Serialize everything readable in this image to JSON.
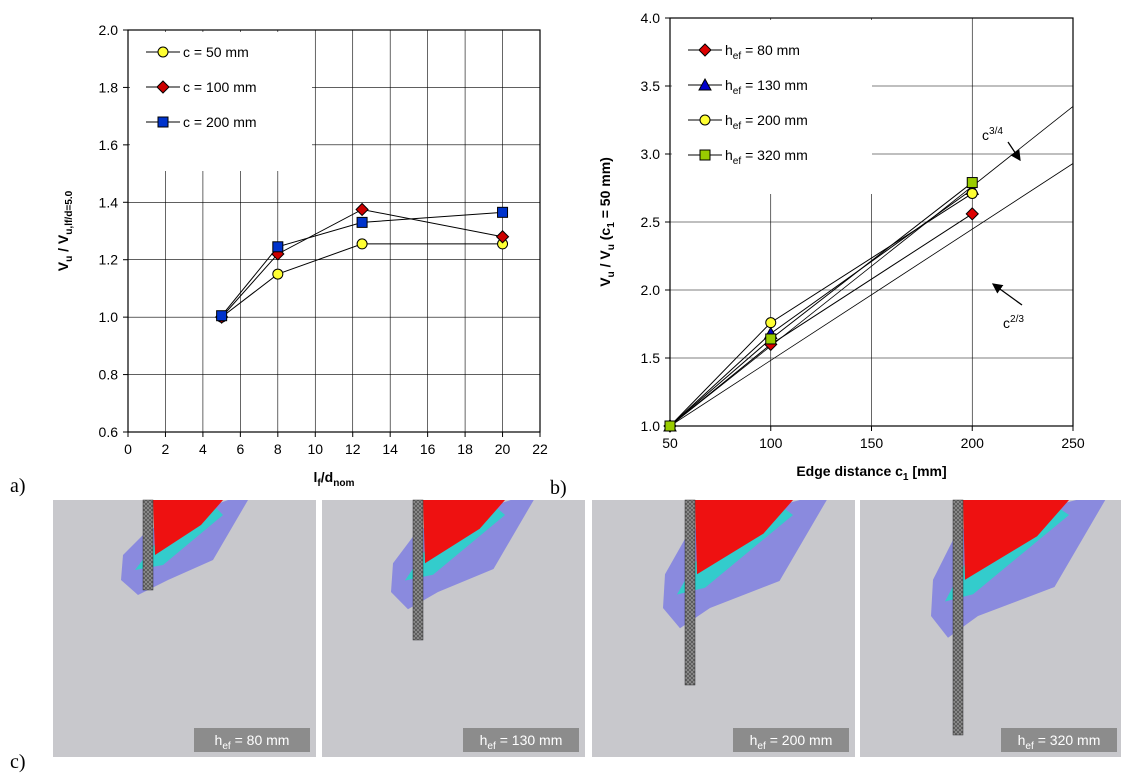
{
  "chart_data": [
    {
      "type": "line",
      "x_label": [
        "l",
        "f",
        "/d",
        "nom"
      ],
      "y_label": [
        "V",
        "u",
        " / V",
        "u,lf/d=5.0"
      ],
      "xlim": [
        0,
        22
      ],
      "xticks": [
        0,
        2,
        4,
        6,
        8,
        10,
        12,
        14,
        16,
        18,
        20,
        22
      ],
      "ylim": [
        0.6,
        2.0
      ],
      "yticks": [
        0.6,
        0.8,
        {
          "value": 1.0,
          "label": "1.0"
        },
        1.2,
        1.4,
        1.6,
        1.8,
        {
          "value": 2.0,
          "label": "2.0"
        }
      ],
      "grid": true,
      "legend": "top-left",
      "x": [
        5,
        8,
        12.5,
        20
      ],
      "series": [
        {
          "name": "c = 50 mm",
          "color": "#ffff33",
          "marker": "circle",
          "values": [
            1.0,
            1.15,
            1.255,
            1.255
          ]
        },
        {
          "name": "c = 100 mm",
          "color": "#cc0000",
          "marker": "diamond",
          "values": [
            1.0,
            1.22,
            1.375,
            1.28
          ]
        },
        {
          "name": "c = 200 mm",
          "color": "#0033cc",
          "marker": "square",
          "values": [
            1.005,
            1.245,
            1.33,
            1.365
          ]
        }
      ]
    },
    {
      "type": "line",
      "x_label": [
        "Edge distance c",
        "1",
        " [mm]"
      ],
      "y_label": [
        "V",
        "u",
        " / V",
        "u",
        " (c",
        "1",
        " = 50 mm)"
      ],
      "xlim": [
        50,
        250
      ],
      "xticks": [
        50,
        100,
        150,
        200,
        250
      ],
      "ylim": [
        1.0,
        4.0
      ],
      "yticks": [
        {
          "value": 1.0,
          "label": "1.0"
        },
        1.5,
        {
          "value": 2.0,
          "label": "2.0"
        },
        2.5,
        {
          "value": 3.0,
          "label": "3.0"
        },
        3.5,
        {
          "value": 4.0,
          "label": "4.0"
        }
      ],
      "grid": true,
      "legend": "top-left",
      "x": [
        50,
        100,
        200
      ],
      "series": [
        {
          "name": [
            "h",
            "ef",
            " = 80 mm"
          ],
          "color": "#dd0000",
          "marker": "diamond",
          "values": [
            1.0,
            1.6,
            2.56
          ]
        },
        {
          "name": [
            "h",
            "ef",
            " = 130 mm"
          ],
          "color": "#0000cc",
          "marker": "triangle",
          "values": [
            1.0,
            1.68,
            2.74
          ]
        },
        {
          "name": [
            "h",
            "ef",
            " = 200 mm"
          ],
          "color": "#ffff33",
          "marker": "circle",
          "values": [
            1.0,
            1.76,
            2.71
          ]
        },
        {
          "name": [
            "h",
            "ef",
            " = 320 mm"
          ],
          "color": "#99cc00",
          "marker": "square",
          "values": [
            1.0,
            1.64,
            2.79
          ]
        }
      ],
      "reference_lines": [
        {
          "label": [
            "c",
            "3/4"
          ],
          "x": [
            50,
            250
          ],
          "values": [
            1.0,
            3.35
          ]
        },
        {
          "label": [
            "c",
            "2/3"
          ],
          "x": [
            50,
            250
          ],
          "values": [
            1.0,
            2.93
          ]
        }
      ]
    }
  ],
  "panel_labels": [
    "a)",
    "b)",
    "c)"
  ],
  "fe_images": [
    {
      "label": [
        "h",
        "ef",
        " = 80 mm"
      ]
    },
    {
      "label": [
        "h",
        "ef",
        " = 130 mm"
      ]
    },
    {
      "label": [
        "h",
        "ef",
        " = 200 mm"
      ]
    },
    {
      "label": [
        "h",
        "ef",
        " = 320 mm"
      ]
    }
  ]
}
